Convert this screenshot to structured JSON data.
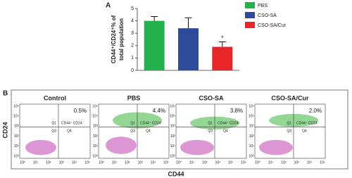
{
  "chart_data": {
    "type": "bar",
    "ylabel": [
      "CD44⁺/CD24⁺% of",
      "total population"
    ],
    "categories": [
      "PBS",
      "CSO-SA",
      "CSO-SA/Cur"
    ],
    "values": [
      4.0,
      3.4,
      1.9
    ],
    "errors": [
      0.35,
      0.85,
      0.4
    ],
    "colors": [
      "#22b14c",
      "#2e4b9b",
      "#e8262a"
    ],
    "ylim": [
      0,
      5
    ],
    "yticks": [
      0,
      1,
      2,
      3,
      4,
      5
    ],
    "annotation": "*"
  },
  "panel_labels": [
    "A",
    "B"
  ],
  "flow": {
    "x_label": "CD44",
    "y_label": "CD24",
    "ticks": [
      "10⁰",
      "10¹",
      "10²",
      "10³",
      "10⁴",
      "10⁵"
    ],
    "quadrants": [
      "Q1",
      "Q3",
      "Q4"
    ],
    "plots": [
      {
        "title": "Control",
        "percent": "0.5%",
        "gate": "CD44⁺ CD24⁻"
      },
      {
        "title": "PBS",
        "percent": "4.4%",
        "gate": "CD44⁺ CD24⁻"
      },
      {
        "title": "CSO-SA",
        "percent": "3.8%",
        "gate": "CD44⁺ CD24⁻"
      },
      {
        "title": "CSO-SA/Cur",
        "percent": "2.0%",
        "gate": "CD44⁺ CD24⁻"
      }
    ]
  }
}
